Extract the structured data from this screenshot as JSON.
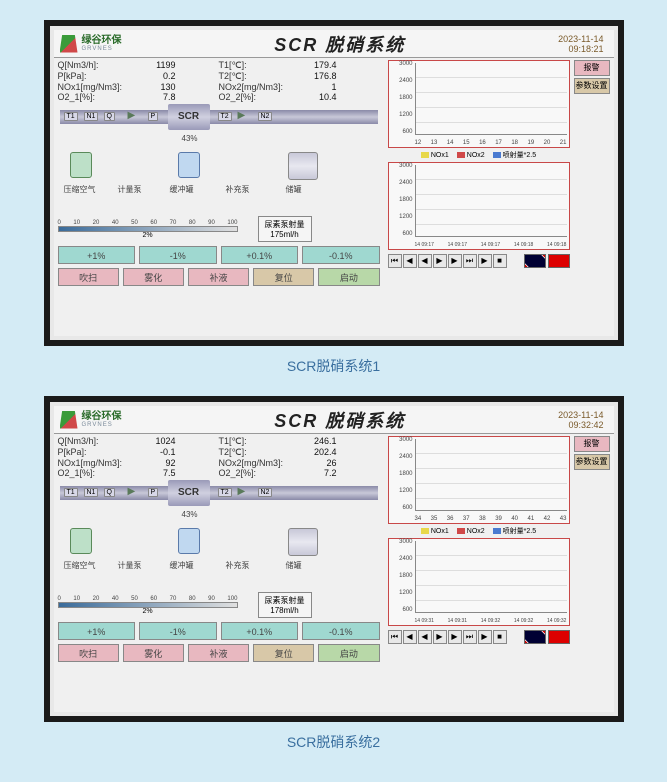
{
  "panels": [
    {
      "id": "p1",
      "caption": "SCR脱硝系统1",
      "title": "SCR 脱硝系统",
      "date": "2023-11-14",
      "time": "09:18:21",
      "params_left": [
        {
          "label": "Q[Nm3/h]:",
          "value": "1199"
        },
        {
          "label": "P[kPa]:",
          "value": "0.2"
        },
        {
          "label": "NOx1[mg/Nm3]:",
          "value": "130"
        },
        {
          "label": "O2_1[%]:",
          "value": "7.8"
        }
      ],
      "params_right": [
        {
          "label": "T1[℃]:",
          "value": "179.4"
        },
        {
          "label": "T2[℃]:",
          "value": "176.8"
        },
        {
          "label": "NOx2[mg/Nm3]:",
          "value": "1"
        },
        {
          "label": "O2_2[%]:",
          "value": "10.4"
        }
      ],
      "pipe_tags": [
        "T1",
        "N1",
        "Q",
        "P",
        "T2",
        "N2"
      ],
      "mid_pct": "43%",
      "comp_labels": [
        "压缩空气",
        "计量泵",
        "缓冲罐",
        "补充泵",
        "储罐"
      ],
      "scale_ticks": [
        "0",
        "10",
        "20",
        "40",
        "50",
        "60",
        "70",
        "80",
        "90",
        "100"
      ],
      "scale_pct": "2%",
      "pump_title": "尿素泵射量",
      "pump_val": "175ml/h",
      "row1": [
        "+1%",
        "-1%",
        "+0.1%",
        "-0.1%"
      ],
      "row2": [
        "吹扫",
        "雾化",
        "补液",
        "复位",
        "启动"
      ],
      "side": [
        "报警",
        "参数设置"
      ],
      "chart1_y": [
        "3000",
        "2400",
        "1800",
        "1200",
        "600"
      ],
      "chart1_x": [
        "12",
        "13",
        "14",
        "15",
        "16",
        "17",
        "18",
        "19",
        "20",
        "21"
      ],
      "legend": [
        {
          "c": "#e8d84a",
          "t": "NOx1"
        },
        {
          "c": "#d04848",
          "t": "NOx2"
        },
        {
          "c": "#4a7ad0",
          "t": "喷射量*2.5"
        }
      ],
      "chart2_y": [
        "3000",
        "2400",
        "1800",
        "1200",
        "600"
      ],
      "chart2_x": [
        "14 09:17",
        "14 09:17",
        "14 09:17",
        "14 09:18",
        "14 09:18"
      ],
      "nav": [
        "⏮",
        "◀",
        "◀",
        "▶",
        "▶",
        "⏭",
        "▶",
        "■"
      ]
    },
    {
      "id": "p2",
      "caption": "SCR脱硝系统2",
      "title": "SCR 脱硝系统",
      "date": "2023-11-14",
      "time": "09:32:42",
      "params_left": [
        {
          "label": "Q[Nm3/h]:",
          "value": "1024"
        },
        {
          "label": "P[kPa]:",
          "value": "-0.1"
        },
        {
          "label": "NOx1[mg/Nm3]:",
          "value": "92"
        },
        {
          "label": "O2_1[%]:",
          "value": "7.5"
        }
      ],
      "params_right": [
        {
          "label": "T1[℃]:",
          "value": "246.1"
        },
        {
          "label": "T2[℃]:",
          "value": "202.4"
        },
        {
          "label": "NOx2[mg/Nm3]:",
          "value": "26"
        },
        {
          "label": "O2_2[%]:",
          "value": "7.2"
        }
      ],
      "pipe_tags": [
        "T1",
        "N1",
        "Q",
        "P",
        "T2",
        "N2"
      ],
      "mid_pct": "43%",
      "comp_labels": [
        "压缩空气",
        "计量泵",
        "缓冲罐",
        "补充泵",
        "储罐"
      ],
      "scale_ticks": [
        "0",
        "10",
        "20",
        "40",
        "50",
        "60",
        "70",
        "80",
        "90",
        "100"
      ],
      "scale_pct": "2%",
      "pump_title": "尿素泵射量",
      "pump_val": "178ml/h",
      "row1": [
        "+1%",
        "-1%",
        "+0.1%",
        "-0.1%"
      ],
      "row2": [
        "吹扫",
        "雾化",
        "补液",
        "复位",
        "启动"
      ],
      "side": [
        "报警",
        "参数设置"
      ],
      "chart1_y": [
        "3000",
        "2400",
        "1800",
        "1200",
        "600"
      ],
      "chart1_x": [
        "34",
        "35",
        "36",
        "37",
        "38",
        "39",
        "40",
        "41",
        "42",
        "43"
      ],
      "legend": [
        {
          "c": "#e8d84a",
          "t": "NOx1"
        },
        {
          "c": "#d04848",
          "t": "NOx2"
        },
        {
          "c": "#4a7ad0",
          "t": "喷射量*2.5"
        }
      ],
      "chart2_y": [
        "3000",
        "2400",
        "1800",
        "1200",
        "600"
      ],
      "chart2_x": [
        "14 09:31",
        "14 09:31",
        "14 09:32",
        "14 09:32",
        "14 09:32"
      ],
      "nav": [
        "⏮",
        "◀",
        "◀",
        "▶",
        "▶",
        "⏭",
        "▶",
        "■"
      ]
    }
  ],
  "colors": {
    "btn_cyan": "#9fd8d0",
    "btn_pink": "#e8b8c0",
    "btn_tan": "#d8c8a8",
    "btn_green": "#b8d8a8",
    "btn_blue": "#b0d8f0"
  }
}
